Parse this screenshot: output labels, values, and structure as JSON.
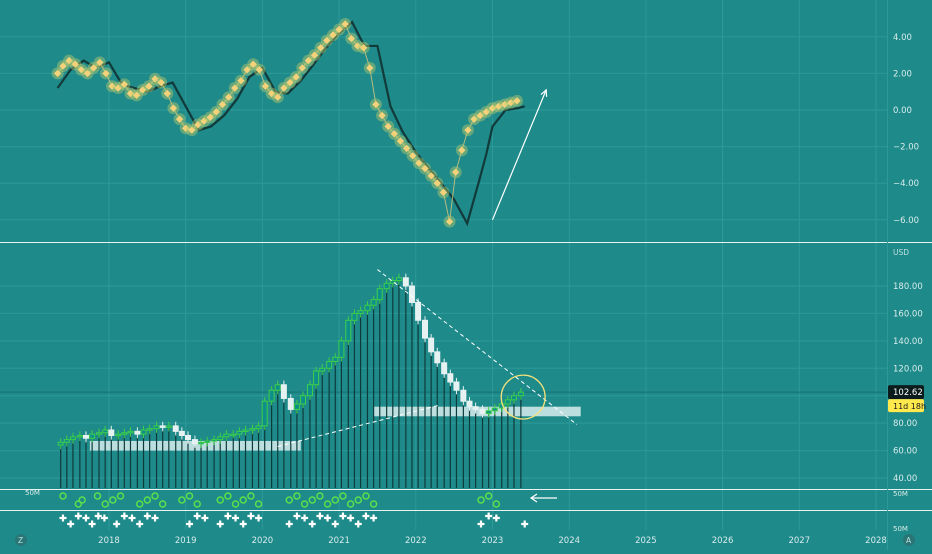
{
  "colors": {
    "background": "#1f8a8a",
    "grid": "#2d9999",
    "separator": "#e6f2f2",
    "axis_text": "#d8ecec",
    "oscillator_line": "#123a3a",
    "oscillator_marker": "#f5d27a",
    "marker_glow": "#b9c96c",
    "candle_up": "#3ccf4a",
    "candle_up_fill": "#0f8f8a",
    "volume_bar": "#0d3b3b",
    "band": "#d9ecec",
    "price_label_bg": "#0c1c1c",
    "countdown_bg": "#ffe94d",
    "annotation": "#ffffff",
    "circle": "#f5e27a"
  },
  "price_axis": {
    "currency": "USD",
    "current_price": "102.62",
    "countdown": "11d 18h"
  },
  "volume_axis": {
    "top_label": "50M",
    "bottom_label": "50M",
    "left_label": "50M"
  },
  "corner_buttons": {
    "left": "Z",
    "right": "A"
  },
  "chart_data": [
    {
      "type": "line",
      "pane": "oscillator",
      "x_range": [
        2017.3,
        2028.2
      ],
      "ylim": [
        -6.8,
        5.3
      ],
      "y_ticks": [
        "4.00",
        "2.00",
        "0.00",
        "−2.00",
        "−4.00",
        "−6.00"
      ],
      "y_tick_values": [
        4,
        2,
        0,
        -2,
        -4,
        -6
      ],
      "series": [
        {
          "role": "signal line",
          "x": [
            2017.33,
            2017.5,
            2017.67,
            2017.83,
            2018.0,
            2018.17,
            2018.33,
            2018.5,
            2018.67,
            2018.83,
            2019.0,
            2019.17,
            2019.33,
            2019.5,
            2019.67,
            2019.83,
            2020.0,
            2020.17,
            2020.33,
            2020.5,
            2020.67,
            2020.83,
            2021.0,
            2021.17,
            2021.33,
            2021.5,
            2021.67,
            2021.83,
            2022.0,
            2022.17,
            2022.33,
            2022.5,
            2022.67,
            2022.83,
            2022.92,
            2023.0,
            2023.17,
            2023.33,
            2023.42
          ],
          "y": [
            1.2,
            2.2,
            2.7,
            2.3,
            2.6,
            1.4,
            1.2,
            1.0,
            1.3,
            1.5,
            0.2,
            -1.1,
            -0.9,
            -0.3,
            0.6,
            1.8,
            2.3,
            1.0,
            0.9,
            1.6,
            2.5,
            3.4,
            4.2,
            4.8,
            3.5,
            3.5,
            0.2,
            -1.2,
            -2.3,
            -3.2,
            -4.0,
            -4.9,
            -6.2,
            -3.8,
            -2.4,
            -0.9,
            0.0,
            0.1,
            0.2
          ]
        },
        {
          "role": "value markers",
          "x": [
            2017.33,
            2017.4,
            2017.48,
            2017.56,
            2017.64,
            2017.72,
            2017.8,
            2017.88,
            2017.96,
            2018.04,
            2018.12,
            2018.2,
            2018.28,
            2018.36,
            2018.44,
            2018.52,
            2018.6,
            2018.68,
            2018.76,
            2018.84,
            2018.92,
            2019.0,
            2019.08,
            2019.16,
            2019.24,
            2019.32,
            2019.4,
            2019.48,
            2019.56,
            2019.64,
            2019.72,
            2019.8,
            2019.88,
            2019.96,
            2020.04,
            2020.12,
            2020.2,
            2020.28,
            2020.36,
            2020.44,
            2020.52,
            2020.6,
            2020.68,
            2020.76,
            2020.84,
            2020.92,
            2021.0,
            2021.08,
            2021.16,
            2021.24,
            2021.32,
            2021.4,
            2021.48,
            2021.56,
            2021.64,
            2021.72,
            2021.8,
            2021.88,
            2021.96,
            2022.04,
            2022.12,
            2022.2,
            2022.28,
            2022.36,
            2022.44,
            2022.52,
            2022.6,
            2022.68,
            2022.76,
            2022.84,
            2022.92,
            2023.0,
            2023.08,
            2023.16,
            2023.24,
            2023.32
          ],
          "y": [
            2.0,
            2.4,
            2.7,
            2.5,
            2.2,
            2.0,
            2.3,
            2.6,
            2.0,
            1.3,
            1.2,
            1.4,
            0.9,
            0.8,
            1.1,
            1.3,
            1.7,
            1.5,
            0.9,
            0.1,
            -0.5,
            -1.0,
            -1.1,
            -0.8,
            -0.6,
            -0.4,
            -0.1,
            0.3,
            0.7,
            1.2,
            1.6,
            2.2,
            2.5,
            2.2,
            1.3,
            0.9,
            0.7,
            1.2,
            1.5,
            1.8,
            2.3,
            2.7,
            3.0,
            3.4,
            3.8,
            4.1,
            4.4,
            4.7,
            3.9,
            3.5,
            3.4,
            2.3,
            0.3,
            -0.3,
            -0.9,
            -1.3,
            -1.7,
            -2.1,
            -2.5,
            -2.9,
            -3.2,
            -3.6,
            -4.0,
            -4.5,
            -6.1,
            -3.4,
            -2.2,
            -1.1,
            -0.5,
            -0.3,
            -0.1,
            0.1,
            0.2,
            0.3,
            0.4,
            0.5
          ]
        }
      ],
      "annotations": [
        {
          "kind": "arrow",
          "from": [
            2023.0,
            -6.0
          ],
          "to": [
            2023.7,
            1.1
          ]
        }
      ]
    },
    {
      "type": "candlestick",
      "pane": "price",
      "currency": "USD",
      "x_range": [
        2017.3,
        2028.2
      ],
      "ylim": [
        33,
        232
      ],
      "y_ticks": [
        "180.00",
        "160.00",
        "140.00",
        "120.00",
        "100.00",
        "80.00",
        "60.00",
        "40.00"
      ],
      "y_tick_values": [
        180,
        160,
        140,
        120,
        100,
        80,
        60,
        40
      ],
      "x_ticks": [
        "2018",
        "2019",
        "2020",
        "2021",
        "2022",
        "2023",
        "2024",
        "2025",
        "2026",
        "2027",
        "2028"
      ],
      "x_tick_values": [
        2018,
        2019,
        2020,
        2021,
        2022,
        2023,
        2024,
        2025,
        2026,
        2027,
        2028
      ],
      "last_price": 102.62,
      "close_x": [
        2017.37,
        2017.45,
        2017.53,
        2017.62,
        2017.7,
        2017.78,
        2017.87,
        2017.95,
        2018.03,
        2018.12,
        2018.2,
        2018.28,
        2018.37,
        2018.45,
        2018.53,
        2018.62,
        2018.7,
        2018.78,
        2018.87,
        2018.95,
        2019.03,
        2019.12,
        2019.2,
        2019.28,
        2019.37,
        2019.45,
        2019.53,
        2019.62,
        2019.7,
        2019.78,
        2019.87,
        2019.95,
        2020.03,
        2020.12,
        2020.2,
        2020.28,
        2020.37,
        2020.45,
        2020.53,
        2020.62,
        2020.7,
        2020.78,
        2020.87,
        2020.95,
        2021.03,
        2021.12,
        2021.2,
        2021.28,
        2021.37,
        2021.45,
        2021.53,
        2021.62,
        2021.7,
        2021.78,
        2021.87,
        2021.95,
        2022.03,
        2022.12,
        2022.2,
        2022.28,
        2022.37,
        2022.45,
        2022.53,
        2022.62,
        2022.7,
        2022.78,
        2022.87,
        2022.95,
        2023.03,
        2023.12,
        2023.2,
        2023.28,
        2023.37
      ],
      "close": [
        66,
        68,
        70,
        71,
        69,
        72,
        73,
        75,
        71,
        72,
        73,
        74,
        72,
        75,
        76,
        78,
        77,
        78,
        74,
        71,
        68,
        65,
        66,
        67,
        68,
        70,
        72,
        72,
        74,
        75,
        76,
        78,
        96,
        104,
        108,
        98,
        90,
        94,
        100,
        108,
        118,
        120,
        125,
        128,
        140,
        155,
        160,
        162,
        166,
        170,
        178,
        182,
        184,
        186,
        180,
        168,
        155,
        142,
        132,
        124,
        116,
        110,
        104,
        96,
        92,
        90,
        87,
        89,
        91,
        94,
        97,
        100,
        102.62
      ],
      "bands": [
        {
          "from_x": 2017.75,
          "to_x": 2020.5,
          "low": 60,
          "high": 67
        },
        {
          "from_x": 2021.45,
          "to_x": 2024.15,
          "low": 85,
          "high": 92
        }
      ],
      "annotations": [
        {
          "kind": "dashed_line",
          "from": [
            2021.5,
            192
          ],
          "to": [
            2024.1,
            79
          ]
        },
        {
          "kind": "dashed_line",
          "from": [
            2020.2,
            63
          ],
          "to": [
            2022.3,
            93
          ]
        },
        {
          "kind": "circle",
          "center": [
            2023.4,
            99
          ],
          "radius_value": 16
        }
      ]
    }
  ],
  "event_markers": {
    "green_circle_x": [
      2017.4,
      2017.6,
      2017.65,
      2017.85,
      2017.95,
      2018.05,
      2018.15,
      2018.4,
      2018.5,
      2018.6,
      2018.7,
      2018.95,
      2019.05,
      2019.15,
      2019.45,
      2019.55,
      2019.65,
      2019.75,
      2019.85,
      2019.95,
      2020.35,
      2020.45,
      2020.55,
      2020.65,
      2020.75,
      2020.85,
      2020.95,
      2021.05,
      2021.15,
      2021.25,
      2021.35,
      2021.45,
      2022.85,
      2022.95,
      2023.05
    ],
    "plus_x": [
      2017.4,
      2017.5,
      2017.6,
      2017.7,
      2017.78,
      2017.86,
      2017.94,
      2018.1,
      2018.2,
      2018.3,
      2018.4,
      2018.5,
      2018.6,
      2019.05,
      2019.15,
      2019.25,
      2019.45,
      2019.55,
      2019.65,
      2019.75,
      2019.85,
      2019.95,
      2020.35,
      2020.45,
      2020.55,
      2020.65,
      2020.75,
      2020.85,
      2020.95,
      2021.05,
      2021.15,
      2021.25,
      2021.35,
      2021.45,
      2022.85,
      2022.95,
      2023.05,
      2023.42
    ]
  }
}
